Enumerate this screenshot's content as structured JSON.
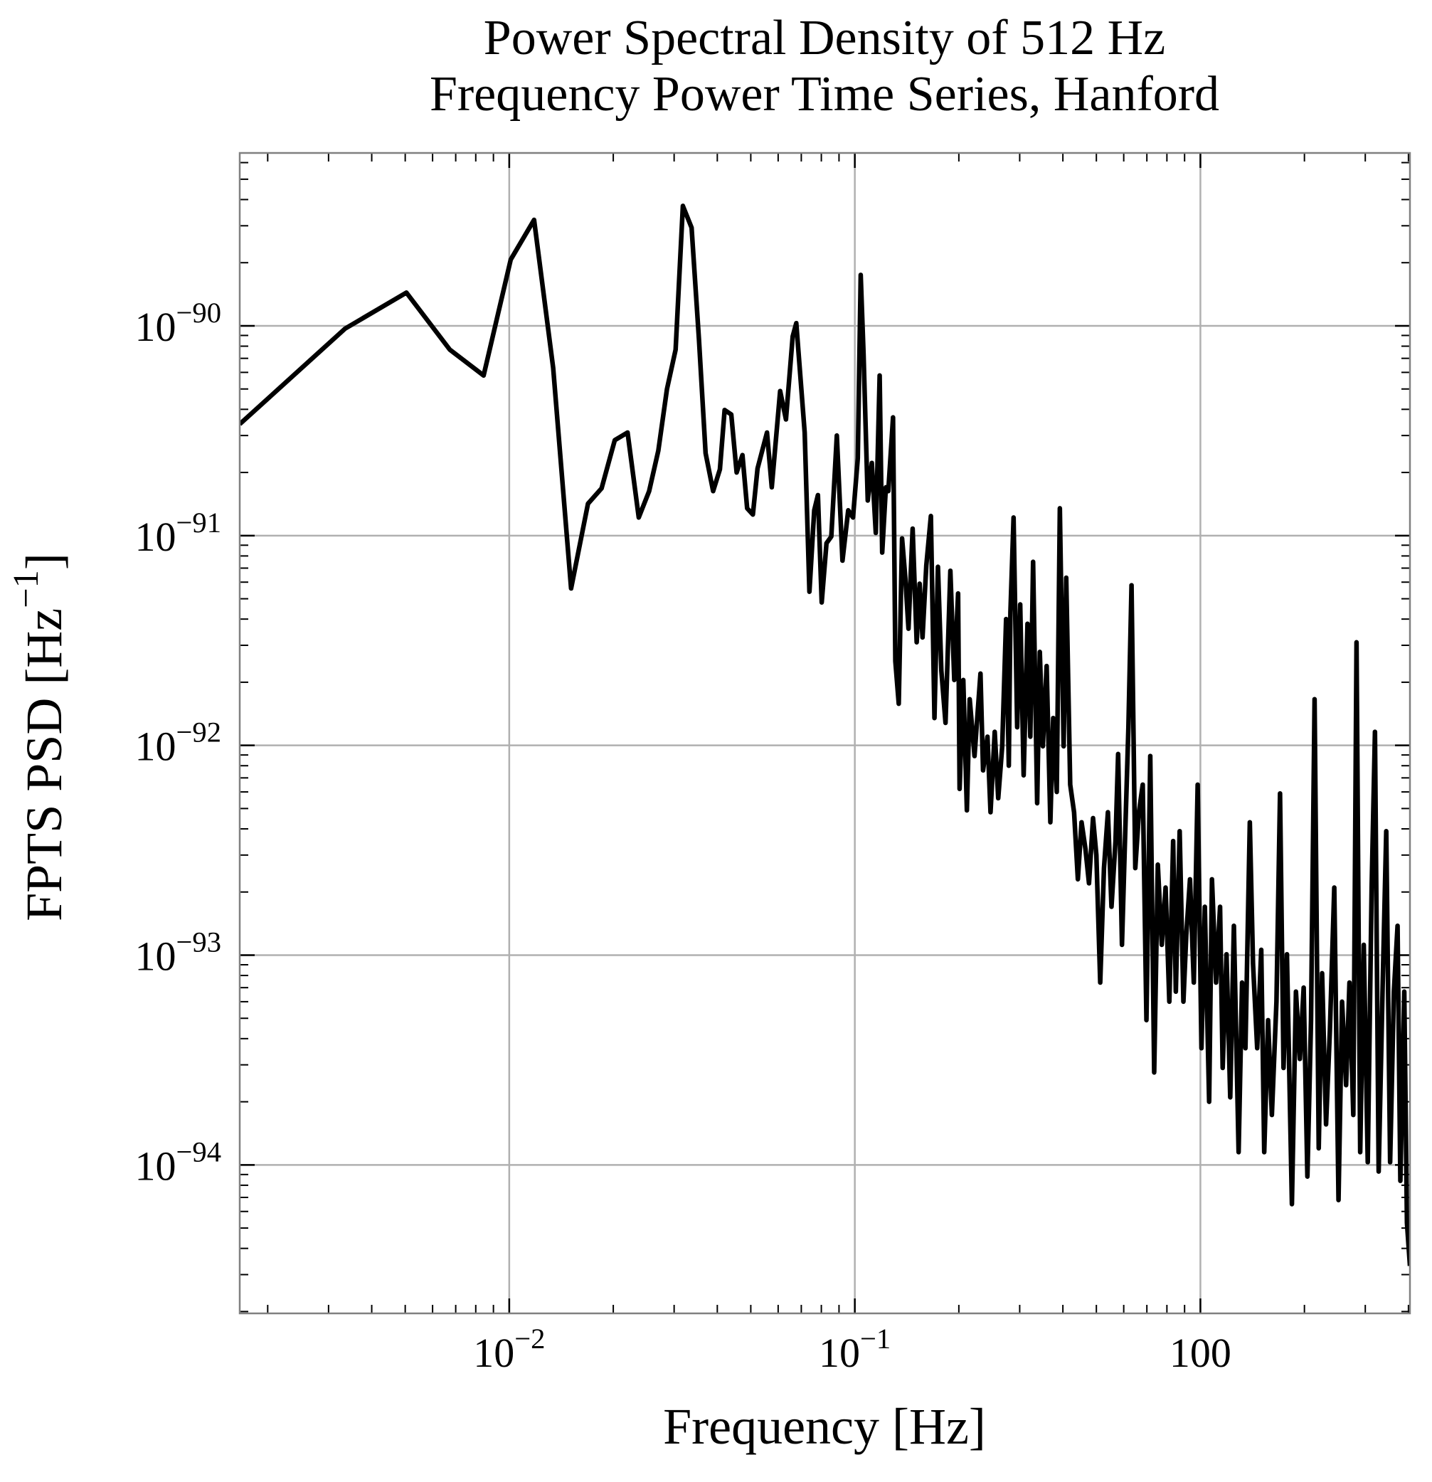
{
  "chart_data": {
    "type": "line",
    "title": [
      "Power Spectral Density of 512 Hz",
      "Frequency Power Time Series, Hanford"
    ],
    "x_label": "Frequency [Hz]",
    "y_label": "FPTS PSD [Hz−1]",
    "x_scale": "log",
    "y_scale": "log",
    "grid": true,
    "xlim": [
      0.00166,
      4.04
    ],
    "ylim": [
      1.96e-95,
      6.67e-90
    ],
    "xticks": [
      {
        "value": 0.01,
        "label": "10−2"
      },
      {
        "value": 0.1,
        "label": "10−1"
      },
      {
        "value": 1,
        "label": "100"
      }
    ],
    "yticks": [
      {
        "value": 1e-94,
        "label": "10−94"
      },
      {
        "value": 1e-93,
        "label": "10−93"
      },
      {
        "value": 1e-92,
        "label": "10−92"
      },
      {
        "value": 1e-91,
        "label": "10−91"
      },
      {
        "value": 1e-90,
        "label": "10−90"
      }
    ],
    "series": [
      {
        "color": "#000000",
        "x": [
          0.00166,
          0.00335,
          0.00504,
          0.00673,
          0.00843,
          0.0101,
          0.0118,
          0.0134,
          0.0151,
          0.0169,
          0.0185,
          0.0202,
          0.022,
          0.0237,
          0.0254,
          0.027,
          0.0286,
          0.0303,
          0.0318,
          0.0337,
          0.0354,
          0.037,
          0.0389,
          0.0407,
          0.042,
          0.0439,
          0.0455,
          0.0473,
          0.0488,
          0.0507,
          0.0523,
          0.0557,
          0.0575,
          0.0608,
          0.0632,
          0.0661,
          0.0677,
          0.0716,
          0.0739,
          0.0763,
          0.0782,
          0.0802,
          0.0828,
          0.0855,
          0.0887,
          0.0921,
          0.0957,
          0.0988,
          0.102,
          0.104,
          0.106,
          0.109,
          0.112,
          0.115,
          0.118,
          0.12,
          0.123,
          0.125,
          0.129,
          0.131,
          0.134,
          0.137,
          0.14,
          0.143,
          0.147,
          0.151,
          0.154,
          0.157,
          0.161,
          0.166,
          0.17,
          0.174,
          0.178,
          0.183,
          0.189,
          0.194,
          0.199,
          0.201,
          0.206,
          0.211,
          0.215,
          0.222,
          0.231,
          0.235,
          0.242,
          0.247,
          0.254,
          0.26,
          0.267,
          0.274,
          0.279,
          0.282,
          0.288,
          0.295,
          0.301,
          0.308,
          0.316,
          0.322,
          0.328,
          0.337,
          0.343,
          0.35,
          0.359,
          0.368,
          0.375,
          0.384,
          0.392,
          0.402,
          0.409,
          0.42,
          0.431,
          0.442,
          0.453,
          0.465,
          0.476,
          0.489,
          0.5,
          0.513,
          0.526,
          0.54,
          0.553,
          0.568,
          0.578,
          0.593,
          0.604,
          0.619,
          0.632,
          0.648,
          0.664,
          0.681,
          0.698,
          0.716,
          0.735,
          0.753,
          0.773,
          0.793,
          0.813,
          0.834,
          0.849,
          0.871,
          0.893,
          0.91,
          0.933,
          0.957,
          0.982,
          1.007,
          1.03,
          1.06,
          1.08,
          1.11,
          1.14,
          1.16,
          1.19,
          1.22,
          1.25,
          1.29,
          1.32,
          1.35,
          1.39,
          1.42,
          1.46,
          1.5,
          1.53,
          1.57,
          1.61,
          1.66,
          1.7,
          1.74,
          1.78,
          1.84,
          1.89,
          1.94,
          1.99,
          2.04,
          2.09,
          2.14,
          2.2,
          2.25,
          2.31,
          2.37,
          2.44,
          2.51,
          2.57,
          2.64,
          2.7,
          2.77,
          2.83,
          2.9,
          2.97,
          3.05,
          3.13,
          3.2,
          3.28,
          3.37,
          3.45,
          3.54,
          3.63,
          3.72,
          3.79,
          3.89,
          3.96,
          4.04
        ],
        "values": [
          3.4e-91,
          9.7e-91,
          1.44e-90,
          7.7e-91,
          5.8e-91,
          2.07e-90,
          3.2e-90,
          6.3e-91,
          5.6e-92,
          1.42e-91,
          1.68e-91,
          2.85e-91,
          3.1e-91,
          1.22e-91,
          1.63e-91,
          2.54e-91,
          4.99e-91,
          7.7e-91,
          3.73e-90,
          2.94e-90,
          8.6e-91,
          2.47e-91,
          1.63e-91,
          2.07e-91,
          3.97e-91,
          3.78e-91,
          2e-91,
          2.42e-91,
          1.35e-91,
          1.26e-91,
          2.09e-91,
          3.1e-91,
          1.7e-91,
          4.89e-91,
          3.58e-91,
          8.9e-91,
          1.03e-90,
          3.1e-91,
          5.4e-92,
          1.32e-91,
          1.56e-91,
          4.8e-92,
          9.2e-92,
          9.9e-92,
          3e-91,
          7.6e-92,
          1.32e-91,
          1.22e-91,
          2.34e-91,
          1.75e-90,
          7.3e-91,
          1.47e-91,
          2.22e-91,
          1.03e-91,
          5.8e-91,
          8.3e-92,
          1.7e-91,
          1.63e-91,
          3.66e-91,
          2.52e-92,
          1.58e-92,
          9.7e-92,
          6.3e-92,
          3.6e-92,
          1.08e-91,
          3.1e-92,
          5.9e-92,
          3.27e-92,
          7.2e-92,
          1.24e-91,
          1.35e-92,
          7.1e-92,
          2.27e-92,
          1.28e-92,
          6.8e-92,
          2.05e-92,
          5.3e-92,
          6.2e-93,
          2.05e-92,
          4.9e-93,
          1.66e-92,
          8.9e-93,
          2.2e-92,
          7.6e-93,
          1.1e-92,
          4.8e-93,
          1.16e-92,
          5.6e-93,
          9.9e-93,
          4e-92,
          8e-93,
          4.3e-92,
          1.22e-91,
          1.22e-92,
          4.7e-92,
          7.2e-93,
          3.8e-92,
          1.1e-92,
          7.5e-92,
          5.3e-93,
          2.79e-92,
          9.9e-93,
          2.39e-92,
          4.3e-93,
          1.35e-92,
          6e-93,
          1.35e-91,
          9.9e-93,
          6.3e-92,
          6.5e-93,
          4.8e-93,
          2.3e-93,
          4.3e-93,
          3.2e-93,
          2.2e-93,
          4.5e-93,
          3e-93,
          7.4e-94,
          2.6e-93,
          4.8e-93,
          1.7e-93,
          3.5e-93,
          9.1e-93,
          1.12e-93,
          3.2e-93,
          1.22e-92,
          5.8e-92,
          2.6e-93,
          4.8e-93,
          6.5e-93,
          4.9e-94,
          8.9e-93,
          2.76e-94,
          2.7e-93,
          1.12e-93,
          2.1e-93,
          6e-94,
          3.5e-93,
          6.7e-94,
          3.9e-93,
          6e-94,
          1.24e-93,
          2.3e-93,
          7.4e-94,
          6.5e-93,
          3.6e-94,
          1.7e-93,
          2e-94,
          2.3e-93,
          7.4e-94,
          1.7e-93,
          2.9e-94,
          1.01e-93,
          2.1e-94,
          1.38e-93,
          1.15e-94,
          7.4e-94,
          3.6e-94,
          4.3e-93,
          9.1e-94,
          3.6e-94,
          1.06e-93,
          1.15e-94,
          4.9e-94,
          1.73e-94,
          6e-94,
          5.9e-93,
          2.9e-94,
          1.01e-93,
          6.5e-95,
          6.7e-94,
          3.2e-94,
          7e-94,
          8.8e-95,
          4.9e-94,
          1.66e-92,
          1.2e-94,
          8.2e-94,
          1.56e-94,
          4.4e-94,
          2.1e-93,
          6.8e-95,
          6e-94,
          2.4e-94,
          7.4e-94,
          1.73e-94,
          3.1e-92,
          1.15e-94,
          1.12e-93,
          1.03e-94,
          2.1e-93,
          1.16e-92,
          9.3e-95,
          7.4e-94,
          3.9e-93,
          1.03e-94,
          6.7e-94,
          1.38e-93,
          8.4e-95,
          6.7e-94,
          5.3e-95,
          3.3e-95
        ]
      }
    ]
  }
}
